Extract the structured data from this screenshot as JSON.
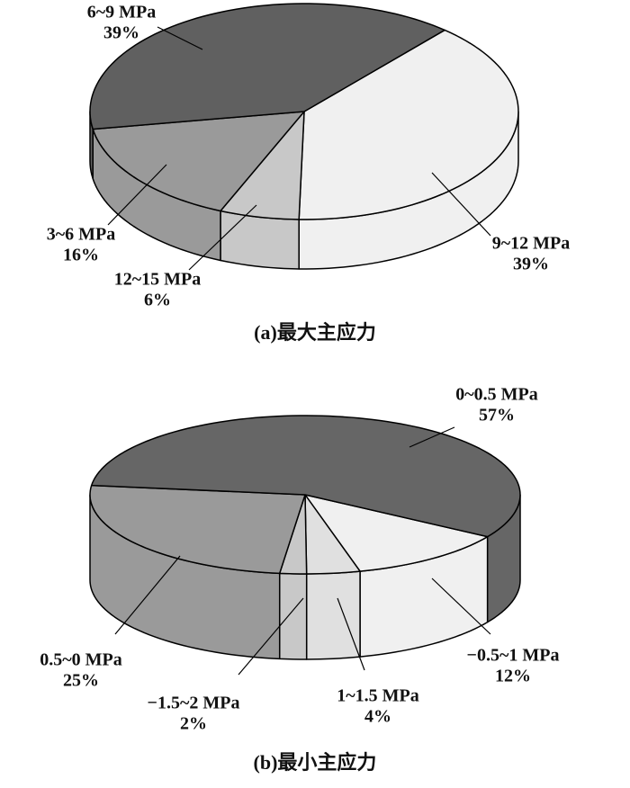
{
  "chart_data": [
    {
      "type": "pie",
      "title": "(a)最大主应力",
      "categories": [
        "9~12 MPa",
        "12~15 MPa",
        "3~6 MPa",
        "6~9 MPa"
      ],
      "values": [
        39,
        6,
        16,
        39
      ],
      "value_labels": [
        "39%",
        "6%",
        "16%",
        "39%"
      ],
      "colors": [
        "#f0f0f0",
        "#c8c8c8",
        "#9a9a9a",
        "#606060"
      ]
    },
    {
      "type": "pie",
      "title": "(b)最小主应力",
      "categories": [
        "−0.5~1 MPa",
        "1~1.5 MPa",
        "−1.5~2 MPa",
        "0.5~0 MPa",
        "0~0.5 MPa"
      ],
      "values": [
        12,
        4,
        2,
        25,
        57
      ],
      "value_labels": [
        "12%",
        "4%",
        "2%",
        "25%",
        "57%"
      ],
      "colors": [
        "#f0f0f0",
        "#e0e0e0",
        "#c8c8c8",
        "#9a9a9a",
        "#666666"
      ]
    }
  ]
}
